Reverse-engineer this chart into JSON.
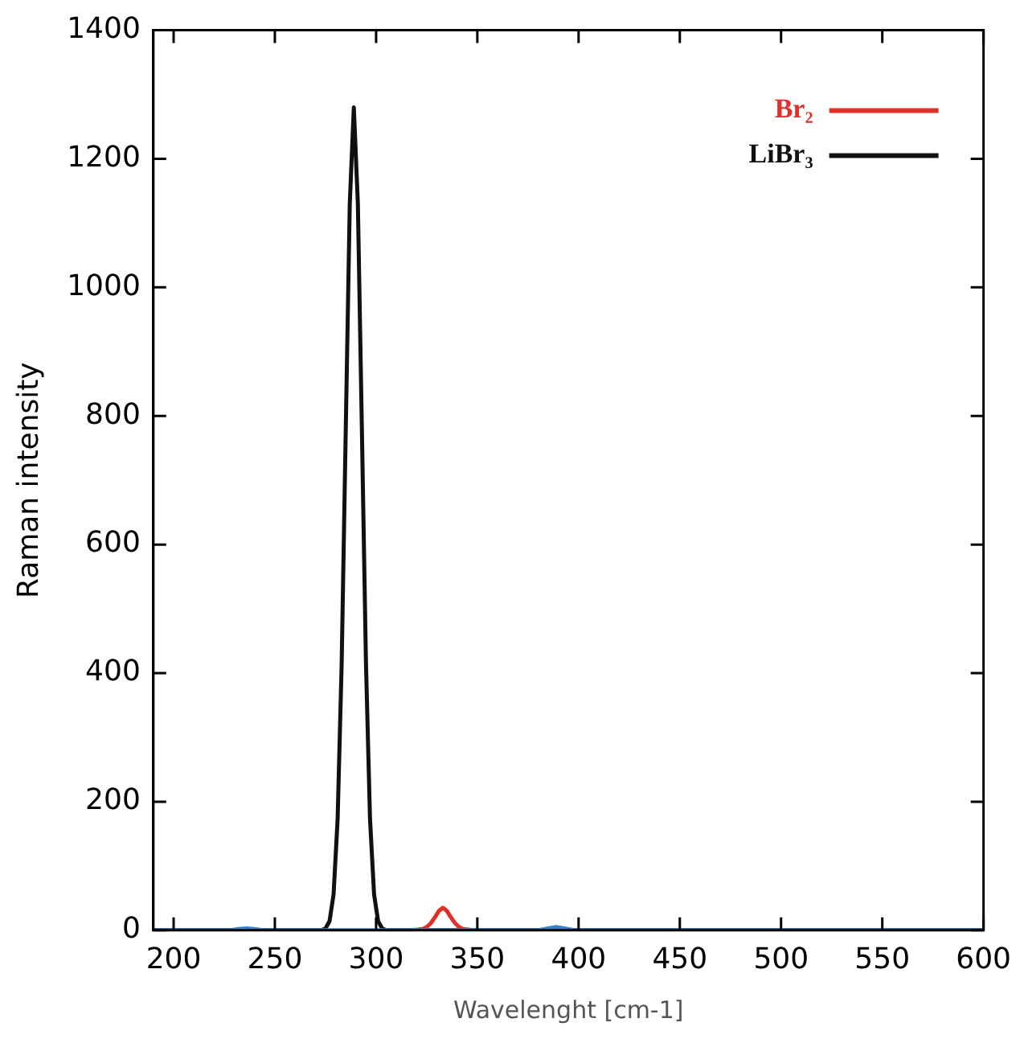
{
  "chart_data": {
    "type": "line",
    "xlabel": "Wavelenght [cm-1]",
    "ylabel": "Raman intensity",
    "xlim": [
      190,
      600
    ],
    "xticks": [
      200,
      250,
      300,
      350,
      400,
      450,
      500,
      550,
      600
    ],
    "ylim": [
      0,
      1400
    ],
    "yticks": [
      0,
      200,
      400,
      600,
      800,
      1000,
      1200,
      1400
    ],
    "grid": false,
    "legend": "top right",
    "marker": "none",
    "line_style": "solid",
    "series": [
      {
        "color": "#3b7fc4",
        "x": [
          190,
          228,
          232,
          236,
          240,
          244,
          380,
          385,
          389,
          393,
          398,
          600
        ],
        "values": [
          0,
          0,
          2,
          3,
          2,
          0,
          0,
          3,
          5,
          3,
          0,
          0
        ]
      },
      {
        "name": "Br₂",
        "color": "#e0302a",
        "x": [
          318,
          323,
          325,
          327,
          329,
          331,
          333,
          335,
          337,
          339,
          341,
          343,
          348
        ],
        "values": [
          0,
          2,
          5,
          11,
          20,
          30,
          35,
          30,
          20,
          11,
          5,
          2,
          0
        ]
      },
      {
        "name": "LiBr₃",
        "color": "#111111",
        "x": [
          190,
          273,
          275,
          277,
          279,
          281,
          283,
          285,
          287,
          289,
          291,
          293,
          295,
          297,
          299,
          301,
          303,
          305,
          307,
          309,
          600
        ],
        "values": [
          0,
          0,
          3,
          14,
          56,
          173,
          415,
          776,
          1130,
          1280,
          1130,
          776,
          415,
          173,
          56,
          14,
          3,
          0,
          0,
          0,
          0
        ]
      }
    ]
  }
}
